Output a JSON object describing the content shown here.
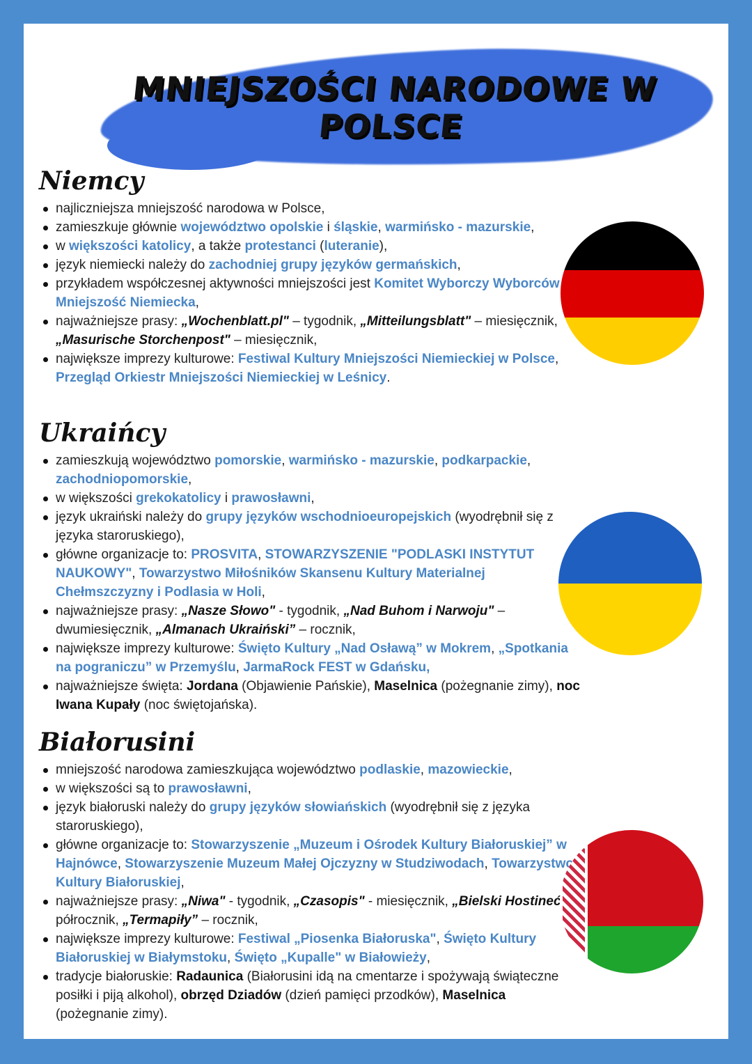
{
  "title": "MNIEJSZOŚCI NARODOWE W POLSCE",
  "colors": {
    "frame": "#4b8dcf",
    "brush": "#3f6fdc",
    "highlight": "#4a86c5"
  },
  "sections": [
    {
      "heading": "Niemcy",
      "flag": "germany-flag",
      "items": [
        [
          [
            "n",
            "najliczniejsza mniejszość narodowa w Polsce,"
          ]
        ],
        [
          [
            "n",
            "zamieszkuje głównie "
          ],
          [
            "b",
            "województwo opolskie"
          ],
          [
            "n",
            " i "
          ],
          [
            "b",
            "śląskie"
          ],
          [
            "n",
            ", "
          ],
          [
            "b",
            "warmińsko - mazurskie"
          ],
          [
            "n",
            ","
          ]
        ],
        [
          [
            "n",
            "w "
          ],
          [
            "b",
            "większości katolicy"
          ],
          [
            "n",
            ", a także "
          ],
          [
            "b",
            "protestanci"
          ],
          [
            "n",
            " ("
          ],
          [
            "b",
            "luteranie"
          ],
          [
            "n",
            "),"
          ]
        ],
        [
          [
            "n",
            "język niemiecki należy do "
          ],
          [
            "b",
            "zachodniej grupy języków germańskich"
          ],
          [
            "n",
            ","
          ]
        ],
        [
          [
            "n",
            "przykładem współczesnej aktywności mniejszości jest "
          ],
          [
            "b",
            "Komitet Wyborczy Wyborców Mniejszość Niemiecka"
          ],
          [
            "n",
            ","
          ]
        ],
        [
          [
            "n",
            "najważniejsze prasy: "
          ],
          [
            "i",
            "„Wochenblatt.pl\""
          ],
          [
            "n",
            " – tygodnik, "
          ],
          [
            "i",
            "„Mitteilungsblatt\""
          ],
          [
            "n",
            " – miesięcznik, "
          ],
          [
            "i",
            "„Masurische Storchenpost\""
          ],
          [
            "n",
            " – miesięcznik,"
          ]
        ],
        [
          [
            "n",
            "największe imprezy kulturowe: "
          ],
          [
            "b",
            "Festiwal Kultury Mniejszości Niemieckiej w Polsce"
          ],
          [
            "n",
            ", "
          ],
          [
            "b",
            "Przegląd Orkiestr Mniejszości Niemieckiej w Leśnicy"
          ],
          [
            "n",
            "."
          ]
        ]
      ]
    },
    {
      "heading": "Ukraińcy",
      "flag": "ukraine-flag",
      "items": [
        [
          [
            "n",
            "zamieszkują województwo "
          ],
          [
            "b",
            "pomorskie"
          ],
          [
            "n",
            ", "
          ],
          [
            "b",
            "warmińsko - mazurskie"
          ],
          [
            "n",
            ", "
          ],
          [
            "b",
            "podkarpackie"
          ],
          [
            "n",
            ", "
          ],
          [
            "b",
            "zachodniopomorskie"
          ],
          [
            "n",
            ","
          ]
        ],
        [
          [
            "n",
            "w większości "
          ],
          [
            "b",
            "grekokatolicy"
          ],
          [
            "n",
            " i "
          ],
          [
            "b",
            "prawosławni"
          ],
          [
            "n",
            ","
          ]
        ],
        [
          [
            "n",
            "język ukraiński należy do "
          ],
          [
            "b",
            "grupy języków wschodnioeuropejskich"
          ],
          [
            "n",
            " (wyodrębnił się z języka staroruskiego),"
          ]
        ],
        [
          [
            "n",
            "główne organizacje to: "
          ],
          [
            "b",
            "PROSVITA"
          ],
          [
            "n",
            ", "
          ],
          [
            "b",
            "STOWARZYSZENIE \"PODLASKI INSTYTUT NAUKOWY\""
          ],
          [
            "n",
            ", "
          ],
          [
            "b",
            "Towarzystwo Miłośników Skansenu Kultury Materialnej Chełmszczyzny i Podlasia w Holi"
          ],
          [
            "n",
            ","
          ]
        ],
        [
          [
            "n",
            "najważniejsze prasy: "
          ],
          [
            "i",
            "„Nasze Słowo\""
          ],
          [
            "n",
            " - tygodnik, "
          ],
          [
            "i",
            "„Nad Buhom i Narwoju\""
          ],
          [
            "n",
            " – dwumiesięcznik, "
          ],
          [
            "i",
            "„Almanach Ukraiński”"
          ],
          [
            "n",
            " – rocznik,"
          ]
        ],
        [
          [
            "n",
            "największe imprezy kulturowe: "
          ],
          [
            "b",
            "Święto Kultury „Nad Osławą” w Mokrem"
          ],
          [
            "n",
            ", "
          ],
          [
            "b",
            "„Spotkania na pograniczu” w Przemyślu"
          ],
          [
            "n",
            ", "
          ],
          [
            "b",
            "JarmaRock FEST w Gdańsku,"
          ]
        ],
        [
          [
            "n",
            "najważniejsze święta: "
          ],
          [
            "k",
            "Jordana"
          ],
          [
            "n",
            " (Objawienie Pańskie), "
          ],
          [
            "k",
            "Maselnica"
          ],
          [
            "n",
            " (pożegnanie zimy), "
          ],
          [
            "k",
            "noc Iwana Kupały"
          ],
          [
            "n",
            " (noc świętojańska)."
          ]
        ]
      ]
    },
    {
      "heading": "Białorusini",
      "flag": "belarus-flag",
      "items": [
        [
          [
            "n",
            "mniejszość narodowa zamieszkująca województwo "
          ],
          [
            "b",
            "podlaskie"
          ],
          [
            "n",
            ", "
          ],
          [
            "b",
            "mazowieckie"
          ],
          [
            "n",
            ","
          ]
        ],
        [
          [
            "n",
            "w większości są to "
          ],
          [
            "b",
            "prawosławni"
          ],
          [
            "n",
            ","
          ]
        ],
        [
          [
            "n",
            "język białoruski należy do "
          ],
          [
            "b",
            "grupy języków słowiańskich"
          ],
          [
            "n",
            " (wyodrębnił się z języka staroruskiego),"
          ]
        ],
        [
          [
            "n",
            "główne organizacje to: "
          ],
          [
            "b",
            "Stowarzyszenie „Muzeum i Ośrodek Kultury Białoruskiej” w Hajnówce"
          ],
          [
            "n",
            ", "
          ],
          [
            "b",
            "Stowarzyszenie Muzeum Małej Ojczyzny w Studziwodach"
          ],
          [
            "n",
            ", "
          ],
          [
            "b",
            "Towarzystwo Kultury Białoruskiej"
          ],
          [
            "n",
            ","
          ]
        ],
        [
          [
            "n",
            "najważniejsze prasy: "
          ],
          [
            "i",
            "„Niwa\""
          ],
          [
            "n",
            " - tygodnik, "
          ],
          [
            "i",
            "„Czasopis\""
          ],
          [
            "n",
            " - miesięcznik, "
          ],
          [
            "i",
            "„Bielski Hostineć”"
          ],
          [
            "n",
            " – półrocznik, "
          ],
          [
            "i",
            "„Termapiły”"
          ],
          [
            "n",
            " – rocznik,"
          ]
        ],
        [
          [
            "n",
            "największe imprezy kulturowe: "
          ],
          [
            "b",
            "Festiwal „Piosenka Białoruska\""
          ],
          [
            "n",
            ", "
          ],
          [
            "b",
            "Święto Kultury Białoruskiej w Białymstoku"
          ],
          [
            "n",
            ", "
          ],
          [
            "b",
            "Święto „Kupalle\" w Białowieży"
          ],
          [
            "n",
            ","
          ]
        ],
        [
          [
            "n",
            "tradycje białoruskie: "
          ],
          [
            "k",
            "Radaunica"
          ],
          [
            "n",
            " (Białorusini idą na cmentarze i spożywają świąteczne posiłki i piją alkohol), "
          ],
          [
            "k",
            "obrzęd Dziadów"
          ],
          [
            "n",
            " (dzień pamięci przodków), "
          ],
          [
            "k",
            "Maselnica"
          ],
          [
            "n",
            " (pożegnanie zimy)."
          ]
        ]
      ]
    }
  ]
}
